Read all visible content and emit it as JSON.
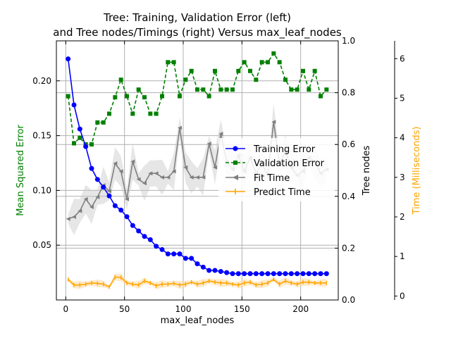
{
  "chart_data": {
    "type": "line",
    "title_line1": "Tree: Training, Validation Error (left)",
    "title_line2": "and Tree nodes/Timings (right) Versus max_leaf_nodes",
    "xlabel": "max_leaf_nodes",
    "ylabel_left": "Mean Squared Error",
    "ylabel_right1": "Tree nodes",
    "ylabel_right2": "Time (Milliseconds)",
    "xlim": [
      -8,
      232
    ],
    "ylim_left": [
      0.0,
      0.2365
    ],
    "ylim_right1": [
      0.0,
      1.0
    ],
    "ylim_right2": [
      -0.1,
      6.45
    ],
    "x_ticks": [
      0,
      50,
      100,
      150,
      200
    ],
    "y_ticks_left": [
      0.05,
      0.1,
      0.15,
      0.2
    ],
    "y_tick_labels_left": [
      "0.05",
      "0.10",
      "0.15",
      "0.20"
    ],
    "y_ticks_right1": [
      0.0,
      0.2,
      0.4,
      0.6,
      0.8,
      1.0
    ],
    "y_tick_labels_right1": [
      "0.0",
      "0.2",
      "0.4",
      "0.6",
      "0.8",
      "1.0"
    ],
    "y_ticks_right2": [
      0,
      1,
      2,
      3,
      4,
      5,
      6
    ],
    "grid": true,
    "legend_position": "center-right",
    "colors": {
      "training": "#0000ff",
      "validation": "#008000",
      "fit": "#808080",
      "predict": "#ffa500",
      "grid": "#b0b0b0"
    },
    "x": [
      2,
      7,
      12,
      17,
      22,
      27,
      32,
      37,
      42,
      47,
      52,
      57,
      62,
      67,
      72,
      77,
      82,
      87,
      92,
      97,
      102,
      107,
      112,
      117,
      122,
      127,
      132,
      137,
      142,
      147,
      152,
      157,
      162,
      167,
      172,
      177,
      182,
      187,
      192,
      197,
      202,
      207,
      212,
      217,
      222
    ],
    "series": [
      {
        "name": "Training Error",
        "axis": "left",
        "values": [
          0.22,
          0.178,
          0.156,
          0.14,
          0.12,
          0.11,
          0.103,
          0.095,
          0.086,
          0.082,
          0.076,
          0.068,
          0.063,
          0.058,
          0.055,
          0.049,
          0.046,
          0.042,
          0.042,
          0.042,
          0.038,
          0.038,
          0.033,
          0.03,
          0.027,
          0.027,
          0.026,
          0.025,
          0.024,
          0.024,
          0.024,
          0.024,
          0.024,
          0.024,
          0.024,
          0.024,
          0.024,
          0.024,
          0.024,
          0.024,
          0.024,
          0.024,
          0.024,
          0.024,
          0.024
        ]
      },
      {
        "name": "Validation Error",
        "axis": "left",
        "values": [
          0.186,
          0.143,
          0.148,
          0.142,
          0.142,
          0.162,
          0.162,
          0.17,
          0.185,
          0.201,
          0.186,
          0.17,
          0.192,
          0.185,
          0.17,
          0.17,
          0.186,
          0.217,
          0.217,
          0.186,
          0.201,
          0.209,
          0.192,
          0.192,
          0.186,
          0.209,
          0.192,
          0.192,
          0.192,
          0.209,
          0.217,
          0.209,
          0.201,
          0.217,
          0.217,
          0.225,
          0.217,
          0.201,
          0.192,
          0.192,
          0.209,
          0.192,
          0.209,
          0.186,
          0.192
        ]
      },
      {
        "name": "Fit Time",
        "axis": "right2",
        "values": [
          1.95,
          2.0,
          2.15,
          2.45,
          2.25,
          2.5,
          2.8,
          2.65,
          3.35,
          3.15,
          2.45,
          3.4,
          2.95,
          2.85,
          3.1,
          3.1,
          3.0,
          3.0,
          3.15,
          4.25,
          3.25,
          3.0,
          3.0,
          3.0,
          3.85,
          3.25,
          4.1,
          3.4,
          3.2,
          3.55,
          3.15,
          3.5,
          3.1,
          3.35,
          3.05,
          4.4,
          3.35,
          3.65,
          3.25,
          3.05,
          3.15,
          3.5,
          3.4,
          3.1,
          3.2
        ]
      },
      {
        "name": "Predict Time",
        "axis": "right2",
        "values": [
          0.42,
          0.28,
          0.28,
          0.3,
          0.33,
          0.32,
          0.3,
          0.23,
          0.48,
          0.47,
          0.33,
          0.3,
          0.28,
          0.38,
          0.33,
          0.26,
          0.3,
          0.3,
          0.32,
          0.28,
          0.3,
          0.35,
          0.3,
          0.33,
          0.38,
          0.35,
          0.33,
          0.33,
          0.3,
          0.28,
          0.33,
          0.35,
          0.28,
          0.3,
          0.33,
          0.42,
          0.3,
          0.38,
          0.33,
          0.3,
          0.35,
          0.35,
          0.33,
          0.33,
          0.33
        ]
      }
    ]
  }
}
